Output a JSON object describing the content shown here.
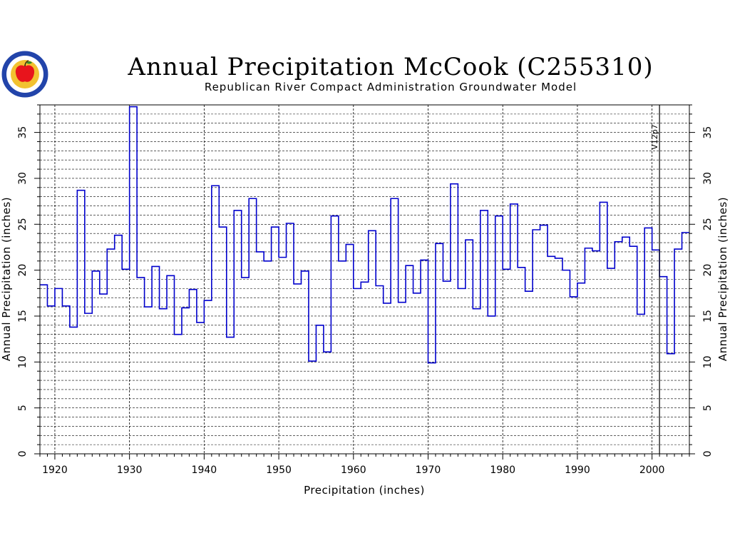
{
  "colors": {
    "series": "#0000cc",
    "grid": "#000000",
    "background": "#ffffff",
    "logo_ring": "#2244aa",
    "logo_fill": "#f2c230",
    "logo_apple": "#e8141c"
  },
  "logo": {
    "icon": "apple-seal-logo"
  },
  "chart_data": {
    "type": "step",
    "title": "Annual Precipitation McCook (C255310)",
    "subtitle": "Republican River Compact Administration Groundwater Model",
    "xlabel": "Precipitation (inches)",
    "ylabel": "Annual Precipitation (inches)",
    "ylabel_right": "Annual Precipitation (inches)",
    "xlim": [
      1918,
      2005
    ],
    "ylim": [
      0,
      38
    ],
    "x_ticks": [
      1920,
      1930,
      1940,
      1950,
      1960,
      1970,
      1980,
      1990,
      2000
    ],
    "y_ticks": [
      0,
      5,
      10,
      15,
      20,
      25,
      30,
      35
    ],
    "grid": true,
    "annotation": {
      "label": "V12p7",
      "x": 2001
    },
    "series": [
      {
        "years": [
          1918,
          1919,
          1920,
          1921,
          1922,
          1923,
          1924,
          1925,
          1926,
          1927,
          1928,
          1929,
          1930,
          1931,
          1932,
          1933,
          1934,
          1935,
          1936,
          1937,
          1938,
          1939,
          1940,
          1941,
          1942,
          1943,
          1944,
          1945,
          1946,
          1947,
          1948,
          1949,
          1950,
          1951,
          1952,
          1953,
          1954,
          1955,
          1956,
          1957,
          1958,
          1959,
          1960,
          1961,
          1962,
          1963,
          1964,
          1965,
          1966,
          1967,
          1968,
          1969,
          1970,
          1971,
          1972,
          1973,
          1974,
          1975,
          1976,
          1977,
          1978,
          1979,
          1980,
          1981,
          1982,
          1983,
          1984,
          1985,
          1986,
          1987,
          1988,
          1989,
          1990,
          1991,
          1992,
          1993,
          1994,
          1995,
          1996,
          1997,
          1998,
          1999,
          2000,
          2001,
          2002,
          2003,
          2004
        ],
        "values": [
          18.4,
          16.1,
          18.0,
          16.1,
          13.8,
          28.7,
          15.3,
          19.9,
          17.4,
          22.3,
          23.8,
          20.1,
          37.8,
          19.2,
          16.0,
          20.4,
          15.8,
          19.4,
          13.0,
          15.9,
          17.9,
          14.3,
          16.7,
          29.2,
          24.7,
          12.7,
          26.5,
          19.2,
          27.8,
          22.0,
          21.0,
          24.7,
          21.4,
          25.1,
          18.5,
          19.9,
          10.1,
          14.0,
          11.1,
          25.9,
          21.0,
          22.8,
          18.0,
          18.7,
          24.3,
          18.3,
          16.4,
          27.8,
          16.5,
          20.5,
          17.5,
          21.1,
          9.9,
          22.9,
          18.8,
          29.4,
          18.0,
          23.3,
          15.8,
          26.5,
          15.0,
          25.9,
          20.1,
          27.2,
          20.3,
          17.7,
          24.4,
          24.9,
          21.5,
          21.3,
          20.0,
          17.1,
          18.6,
          22.4,
          22.1,
          27.4,
          20.2,
          23.1,
          23.6,
          22.6,
          15.2,
          24.6,
          22.2,
          19.3,
          10.9,
          22.3,
          24.1
        ]
      }
    ]
  }
}
